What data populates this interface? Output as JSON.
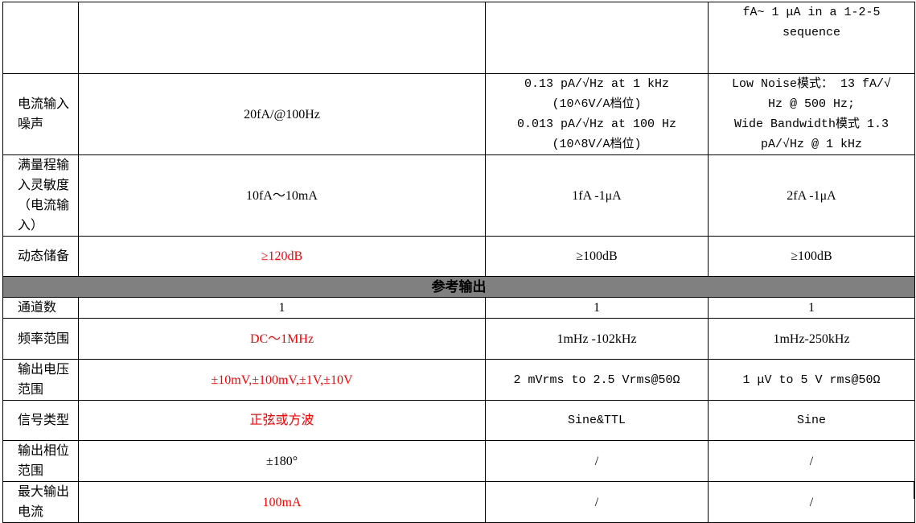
{
  "rows_top": [
    {
      "label": "",
      "c1": "",
      "c2": "",
      "c3": "fA~ 1 μA in a 1-2-5 sequence"
    },
    {
      "label": "电流输入噪声",
      "c1": "20fA/@100Hz",
      "c2": [
        "0.13 pA/√Hz at 1 kHz",
        "(10^6V/A档位)",
        "0.013 pA/√Hz at 100 Hz",
        "(10^8V/A档位)"
      ],
      "c3": [
        "Low Noise模式： 13 fA/√",
        "Hz @ 500 Hz;",
        "Wide Bandwidth模式 1.3",
        "pA/√Hz @ 1 kHz"
      ]
    },
    {
      "label": "满量程输入灵敏度（电流输入）",
      "c1": "10fA～10mA",
      "c2": "1fA -1μA",
      "c3": "2fA -1μA"
    },
    {
      "label": "动态储备",
      "c1": "≥120dB",
      "c2": "≥100dB",
      "c3": "≥100dB"
    }
  ],
  "section": "参考输出",
  "rows_ref": [
    {
      "label": "通道数",
      "c1": "1",
      "c2": "1",
      "c3": "1"
    },
    {
      "label": "频率范围",
      "c1": "DC～1MHz",
      "c2": "1mHz -102kHz",
      "c3": "1mHz-250kHz"
    },
    {
      "label": "输出电压范围",
      "c1": "±10mV,±100mV,±1V,±10V",
      "c2": "2 mVrms to 2.5 Vrms@50Ω",
      "c3": "1 μV to 5 V rms@50Ω"
    },
    {
      "label": "信号类型",
      "c1": "正弦或方波",
      "c2": "Sine&TTL",
      "c3": "Sine"
    },
    {
      "label": "输出相位范围",
      "c1": "±180°",
      "c2": "/",
      "c3": "/"
    },
    {
      "label": "最大输出电流",
      "c1": "100mA",
      "c2": "/",
      "c3": "/"
    }
  ],
  "highlight_color": "#ff0000",
  "section_bg": "#808080"
}
